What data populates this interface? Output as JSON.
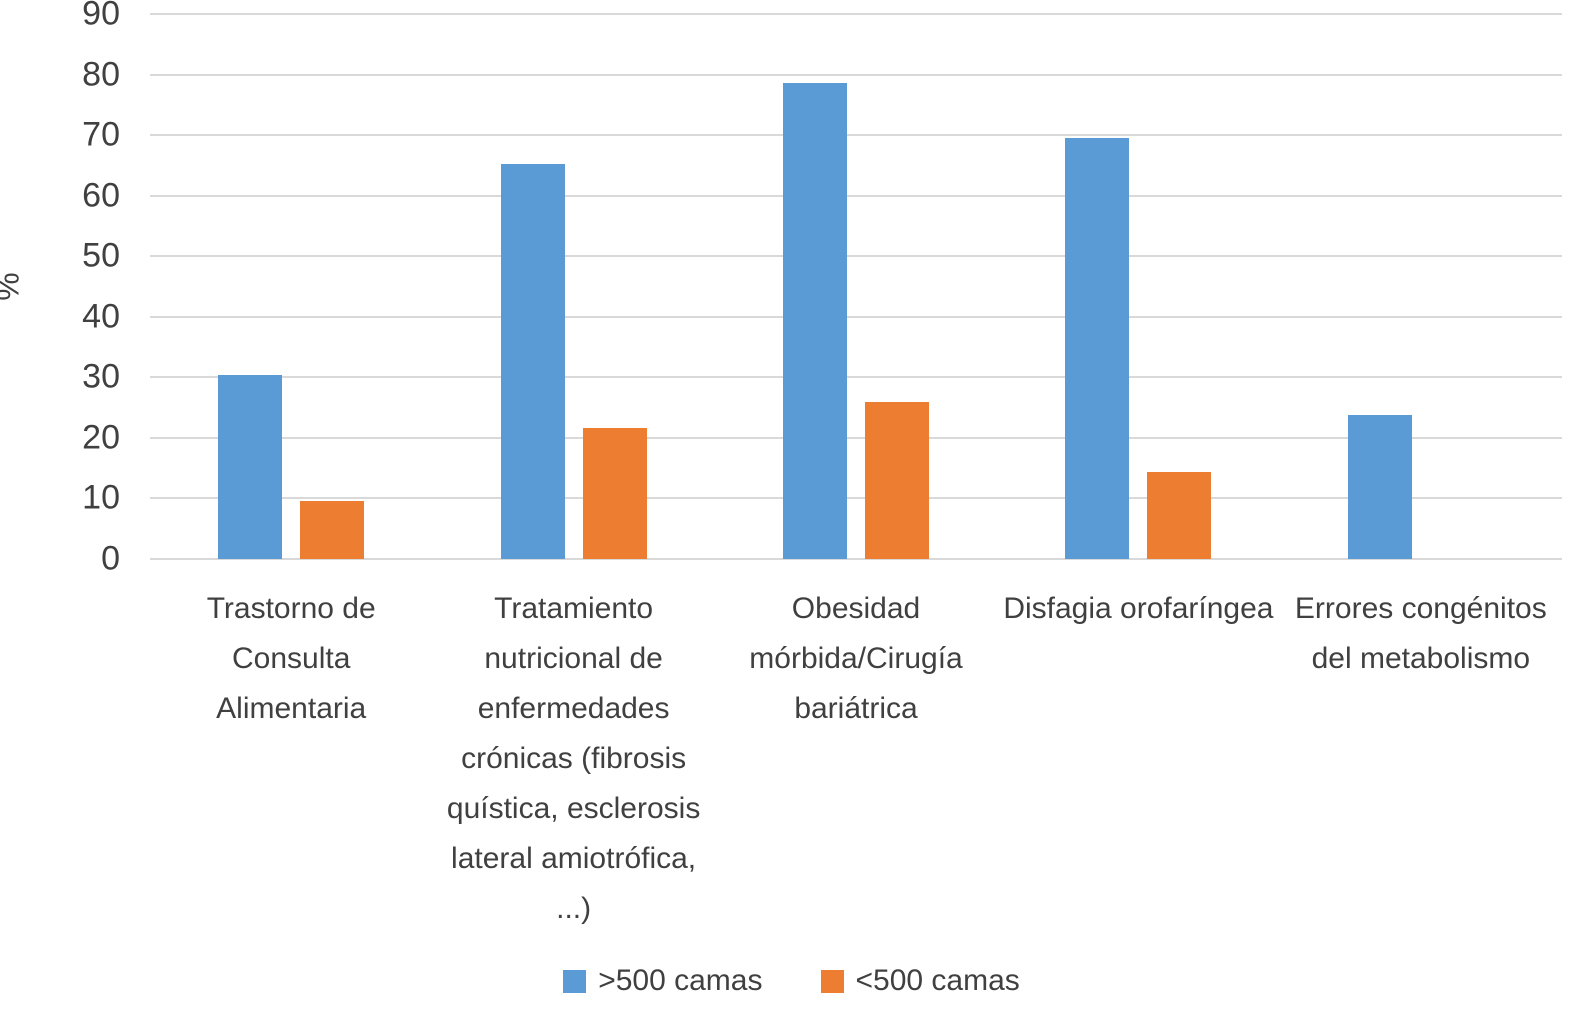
{
  "chart_data": {
    "type": "bar",
    "title": "",
    "xlabel": "",
    "ylabel": "%",
    "ylim": [
      0,
      90
    ],
    "ytick_interval": 10,
    "grid": true,
    "legend_position": "bottom",
    "categories": [
      "Trastorno de Consulta Alimentaria",
      "Tratamiento nutricional de enfermedades crónicas (fibrosis quística, esclerosis lateral amiotrófica, ...)",
      "Obesidad mórbida/Cirugía bariátrica",
      "Disfagia orofaríngea",
      "Errores congénitos del metabolismo"
    ],
    "series": [
      {
        "name": ">500 camas",
        "color": "#5b9bd5",
        "values": [
          30.4,
          65.2,
          78.6,
          69.6,
          23.8
        ]
      },
      {
        "name": "<500 camas",
        "color": "#ed7d31",
        "values": [
          9.5,
          21.7,
          26.0,
          14.4,
          0
        ]
      }
    ],
    "colors": {
      "gridline": "#d9d9d9",
      "text": "#404040",
      "background": "#ffffff"
    }
  }
}
